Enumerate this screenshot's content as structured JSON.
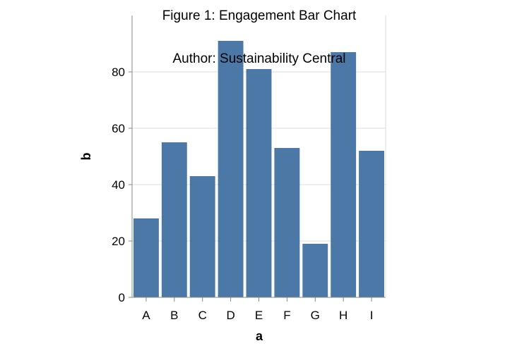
{
  "chart_data": {
    "type": "bar",
    "title_lines": [
      "Figure 1: Engagement Bar Chart",
      "Author: Sustainability Central"
    ],
    "xlabel": "a",
    "ylabel": "b",
    "categories": [
      "A",
      "B",
      "C",
      "D",
      "E",
      "F",
      "G",
      "H",
      "I"
    ],
    "values": [
      28,
      55,
      43,
      91,
      81,
      53,
      19,
      87,
      52
    ],
    "ylim": [
      0,
      100
    ],
    "yticks": [
      0,
      20,
      40,
      60,
      80
    ],
    "ytick_labels": [
      "0",
      "20",
      "40",
      "60",
      "80"
    ],
    "grid": true,
    "bar_color": "#4c78a8",
    "grid_color": "#dddddd",
    "axis_color": "#888888",
    "text_color": "#000000"
  }
}
